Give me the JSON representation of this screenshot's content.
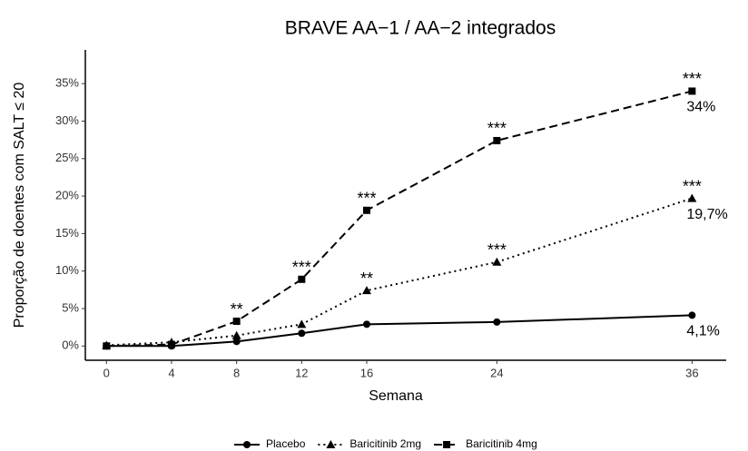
{
  "chart_data": {
    "type": "line",
    "title": "BRAVE AA−1 / AA−2 integrados",
    "x_label": "Semana",
    "y_label": "Proporção de doentes com SALT ≤ 20",
    "x": [
      0,
      4,
      8,
      12,
      16,
      24,
      36
    ],
    "xlim": [
      -1.3,
      38.1
    ],
    "xticks": [
      0,
      4,
      8,
      12,
      16,
      24,
      36
    ],
    "ylim": [
      -1.9,
      39.5
    ],
    "yticks": [
      {
        "value": 0,
        "label": "0%"
      },
      {
        "value": 5,
        "label": "5%"
      },
      {
        "value": 10,
        "label": "10%"
      },
      {
        "value": 15,
        "label": "15%"
      },
      {
        "value": 20,
        "label": "20%"
      },
      {
        "value": 25,
        "label": "25%"
      },
      {
        "value": 30,
        "label": "30%"
      },
      {
        "value": 35,
        "label": "35%"
      }
    ],
    "grid": false,
    "legend": "bottom",
    "series": [
      {
        "name": "Placebo",
        "color": "#000000",
        "marker": "circle",
        "dash": "solid",
        "values": [
          0,
          0,
          0.6,
          1.7,
          2.9,
          3.2,
          4.1
        ],
        "value_labels": [
          null,
          null,
          null,
          null,
          null,
          null,
          "4,1%"
        ],
        "significance": [
          null,
          null,
          null,
          null,
          null,
          null,
          null
        ]
      },
      {
        "name": "Baricitinib 2mg",
        "color": "#000000",
        "marker": "triangle",
        "dash": "dotted",
        "values": [
          0.1,
          0.5,
          1.4,
          2.9,
          7.4,
          11.2,
          19.7
        ],
        "value_labels": [
          null,
          null,
          null,
          null,
          null,
          null,
          "19,7%"
        ],
        "significance": [
          null,
          null,
          null,
          null,
          "**",
          "***",
          "***"
        ]
      },
      {
        "name": "Baricitinib 4mg",
        "color": "#000000",
        "marker": "square",
        "dash": "dashed",
        "values": [
          0,
          0.2,
          3.3,
          8.9,
          18.1,
          27.4,
          34
        ],
        "value_labels": [
          null,
          null,
          null,
          null,
          null,
          null,
          "34%"
        ],
        "significance": [
          null,
          null,
          "**",
          "***",
          "***",
          "***",
          "***"
        ]
      }
    ]
  }
}
